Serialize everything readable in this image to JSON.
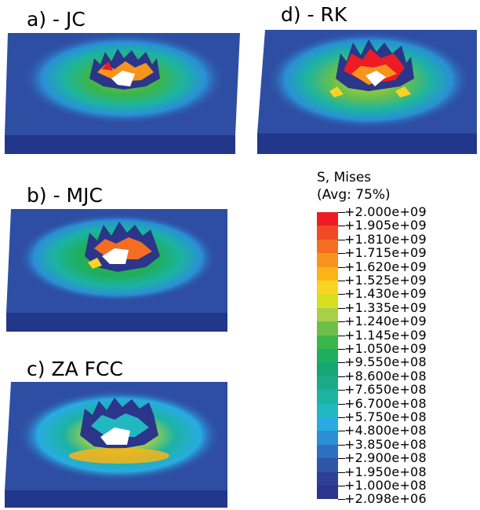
{
  "panels": [
    {
      "label": "a) - JC"
    },
    {
      "label": "d) - RK"
    },
    {
      "label": "b) - MJC"
    },
    {
      "label": "c) ZA FCC"
    }
  ],
  "legend": {
    "title": "S, Mises",
    "subtitle": "(Avg: 75%)",
    "values": [
      "+2.000e+09",
      "+1.905e+09",
      "+1.810e+09",
      "+1.715e+09",
      "+1.620e+09",
      "+1.525e+09",
      "+1.430e+09",
      "+1.335e+09",
      "+1.240e+09",
      "+1.145e+09",
      "+1.050e+09",
      "+9.550e+08",
      "+8.600e+08",
      "+7.650e+08",
      "+6.700e+08",
      "+5.750e+08",
      "+4.800e+08",
      "+3.850e+08",
      "+2.900e+08",
      "+1.950e+08",
      "+1.000e+08",
      "+2.098e+06"
    ],
    "colors": [
      "#ed1c24",
      "#f04a24",
      "#f46d22",
      "#f7941d",
      "#fbb417",
      "#f9d423",
      "#d7df23",
      "#a8d046",
      "#6cc04a",
      "#3ab54a",
      "#1fae5b",
      "#17a673",
      "#1aaa8a",
      "#1cb3a3",
      "#22b8c2",
      "#29abe2",
      "#2a8fd6",
      "#2e6fc0",
      "#2f55a8",
      "#2e3f95",
      "#2b3589"
    ]
  }
}
